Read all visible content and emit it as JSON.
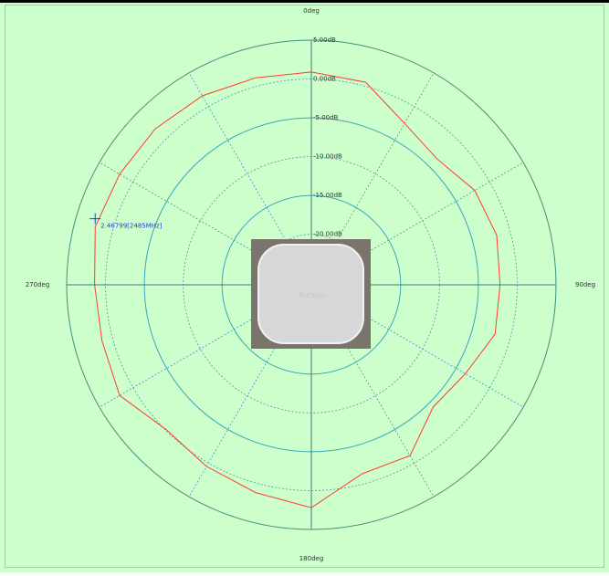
{
  "chart_data": {
    "type": "polar",
    "theta": [
      0,
      15,
      30,
      45,
      60,
      75,
      90,
      105,
      120,
      135,
      150,
      165,
      180,
      195,
      210,
      225,
      240,
      255,
      270,
      285,
      300,
      315,
      330,
      345
    ],
    "series": [
      {
        "color": "#ff3b2f",
        "values": [
          0.9,
          0.5,
          -2.5,
          -3.6,
          -2.2,
          -1.8,
          -2.2,
          -2.0,
          -3.6,
          -4.3,
          -1.1,
          -1.3,
          2.2,
          1.2,
          0.5,
          -0.1,
          2.0,
          1.4,
          1.4,
          2.3,
          2.0,
          1.9,
          1.6,
          1.1
        ]
      }
    ],
    "rlim": [
      -26.5,
      5
    ],
    "rticks": [
      {
        "value": 5,
        "label": "5.00dB"
      },
      {
        "value": 0,
        "label": "0.00dB"
      },
      {
        "value": -5,
        "label": "-5.00dB"
      },
      {
        "value": -10,
        "label": "-10.00dB"
      },
      {
        "value": -15,
        "label": "-15.00dB"
      },
      {
        "value": -20,
        "label": "-20.00dB"
      }
    ],
    "angle_ticks": [
      {
        "value": 0,
        "label": "0deg"
      },
      {
        "value": 90,
        "label": "90deg"
      },
      {
        "value": 180,
        "label": "180deg"
      },
      {
        "value": 270,
        "label": "270deg"
      }
    ],
    "marker": {
      "theta": 287,
      "value": 2.6,
      "label": "2.46799[2485MHz]",
      "color": "#1f3fd0"
    },
    "photo_label": "RUCKUS",
    "grid": true
  }
}
